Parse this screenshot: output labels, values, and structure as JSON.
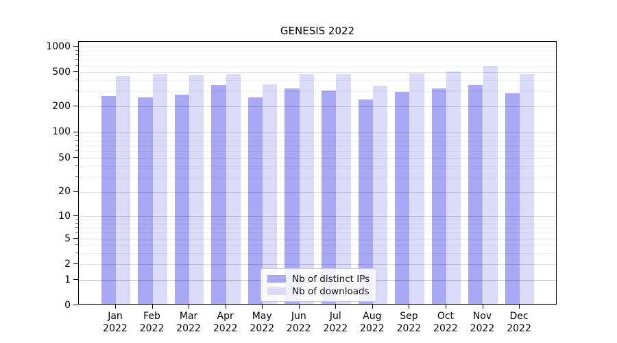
{
  "title": "GENESIS 2022",
  "colors": {
    "distinct_ips": "#a8a8f5",
    "downloads": "#dbdbf9",
    "axis": "#000000"
  },
  "legend": {
    "items": [
      {
        "label": "Nb of distinct IPs"
      },
      {
        "label": "Nb of downloads"
      }
    ]
  },
  "chart_data": {
    "type": "bar",
    "title": "GENESIS 2022",
    "categories": [
      "Jan",
      "Feb",
      "Mar",
      "Apr",
      "May",
      "Jun",
      "Jul",
      "Aug",
      "Sep",
      "Oct",
      "Nov",
      "Dec"
    ],
    "x_tick_second_line": "2022",
    "series": [
      {
        "name": "Nb of distinct IPs",
        "color": "#a8a8f5",
        "values": [
          255,
          245,
          265,
          340,
          247,
          310,
          296,
          230,
          283,
          310,
          340,
          275
        ]
      },
      {
        "name": "Nb of downloads",
        "color": "#dbdbf9",
        "values": [
          430,
          460,
          450,
          462,
          345,
          455,
          462,
          335,
          470,
          490,
          575,
          462
        ]
      }
    ],
    "xlabel": "",
    "ylabel": "",
    "yscale": "symlog",
    "y_ticks": [
      0,
      1,
      2,
      5,
      10,
      20,
      50,
      100,
      200,
      500,
      1000
    ],
    "y_minor_ticks": [
      3,
      4,
      6,
      7,
      8,
      9,
      30,
      40,
      60,
      70,
      80,
      90,
      300,
      400,
      600,
      700,
      800,
      900
    ],
    "ylim": [
      0,
      1100
    ],
    "grid": true,
    "legend_position": "lower center"
  }
}
